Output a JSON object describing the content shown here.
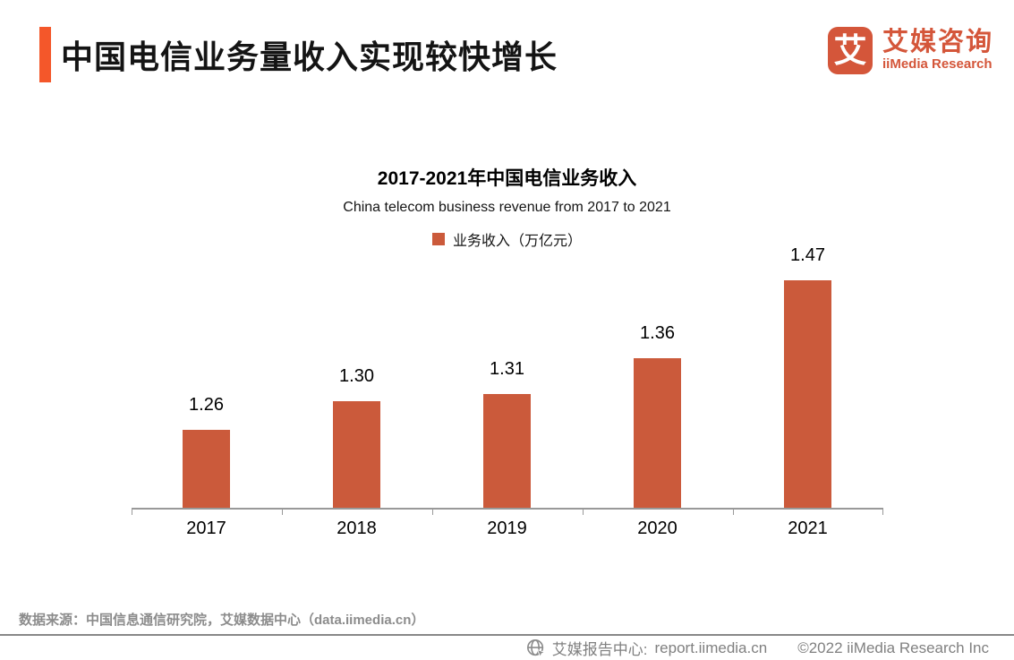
{
  "header": {
    "title": "中国电信业务量收入实现较快增长",
    "logo": {
      "mark_char": "艾",
      "brand_cn": "艾媒咨询",
      "brand_en": "iiMedia Research"
    }
  },
  "chart_data": {
    "type": "bar",
    "title": "2017-2021年中国电信业务收入",
    "subtitle": "China telecom business revenue from 2017 to 2021",
    "legend_label": "业务收入（万亿元）",
    "legend_position": "top",
    "categories": [
      "2017",
      "2018",
      "2019",
      "2020",
      "2021"
    ],
    "values": [
      1.26,
      1.3,
      1.31,
      1.36,
      1.47
    ],
    "value_labels": [
      "1.26",
      "1.30",
      "1.31",
      "1.36",
      "1.47"
    ],
    "xlabel": "",
    "ylabel": "业务收入（万亿元）",
    "ylim": [
      1.15,
      1.5
    ],
    "grid": false,
    "data_labels": true,
    "bar_color": "#CB5A3B"
  },
  "colors": {
    "accent_orange": "#F4572A",
    "brand_orange": "#D4563A",
    "bar_orange": "#CB5A3B",
    "axis_gray": "#999999",
    "muted_gray": "#8C8C8C",
    "footer_gray": "#808080"
  },
  "footer": {
    "source": "数据来源：中国信息通信研究院，艾媒数据中心（data.iimedia.cn）",
    "report_center_label": "艾媒报告中心:",
    "report_center_url": "report.iimedia.cn",
    "copyright": "©2022  iiMedia Research Inc"
  }
}
